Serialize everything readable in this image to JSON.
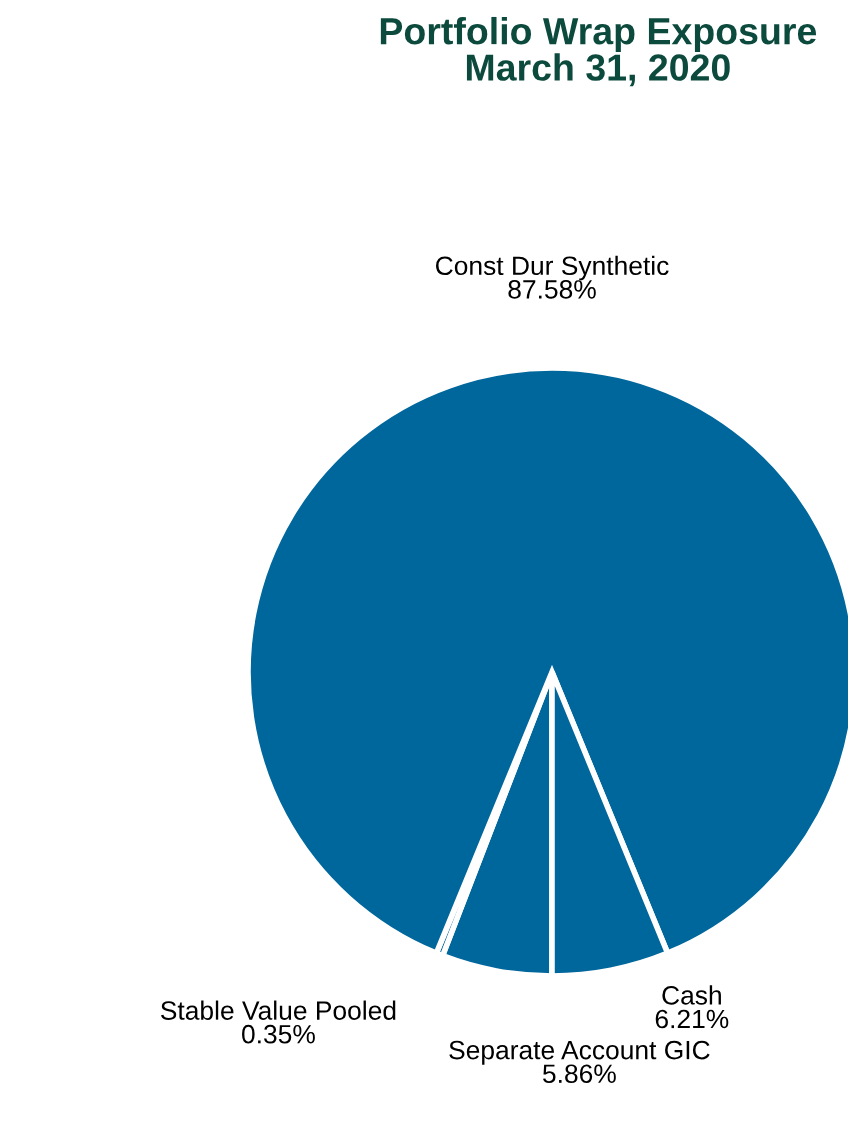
{
  "chart_data": {
    "type": "pie",
    "title": "Portfolio Wrap Exposure\nMarch 31, 2020",
    "categories": [
      "Separate Account GIC",
      "Stable Value Pooled",
      "Const Dur Synthetic",
      "Cash"
    ],
    "values": [
      5.86,
      0.35,
      87.58,
      6.21
    ],
    "colors": [
      "#00679c",
      "#00679c",
      "#00679c",
      "#00679c"
    ],
    "value_labels": [
      "5.86%",
      "0.35%",
      "87.58%",
      "6.21%"
    ]
  }
}
